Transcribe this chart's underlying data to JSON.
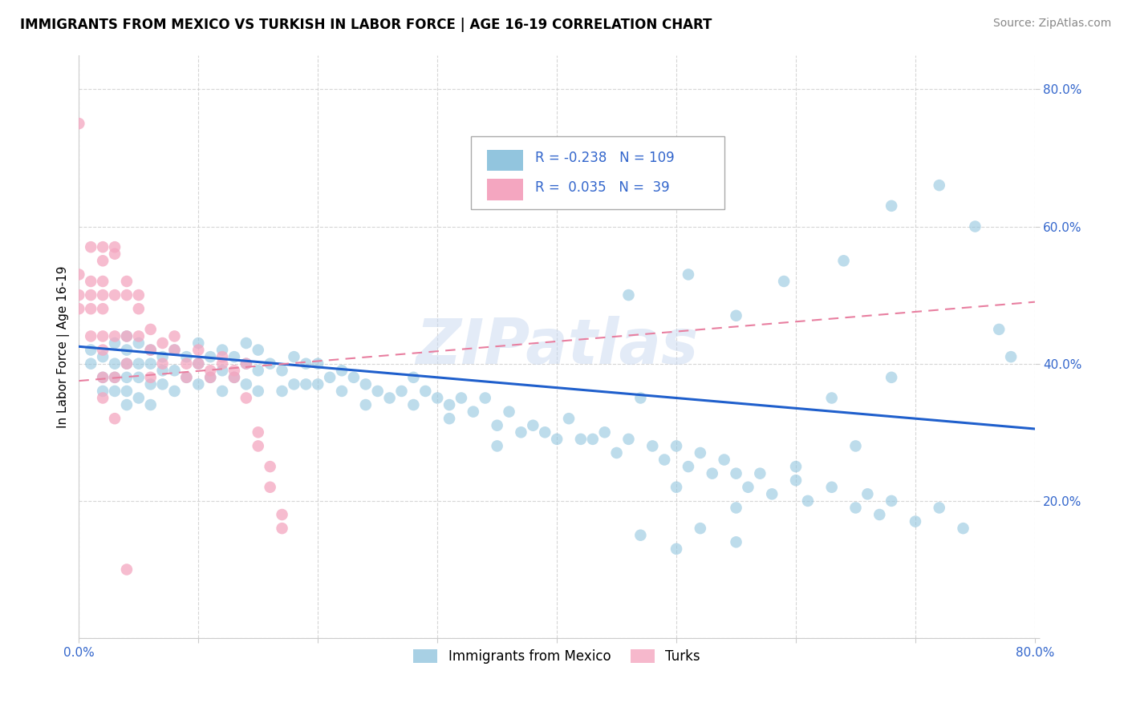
{
  "title": "IMMIGRANTS FROM MEXICO VS TURKISH IN LABOR FORCE | AGE 16-19 CORRELATION CHART",
  "source": "Source: ZipAtlas.com",
  "ylabel": "In Labor Force | Age 16-19",
  "xlim": [
    0.0,
    0.8
  ],
  "ylim": [
    0.0,
    0.85
  ],
  "mexico_color": "#92c5de",
  "turkey_color": "#f4a6c0",
  "mexico_R": -0.238,
  "mexico_N": 109,
  "turkey_R": 0.035,
  "turkey_N": 39,
  "legend_label_mexico": "Immigrants from Mexico",
  "legend_label_turkey": "Turks",
  "watermark": "ZIPatlas",
  "mexico_trendline_start_y": 0.425,
  "mexico_trendline_end_y": 0.305,
  "turkey_trendline_start_y": 0.375,
  "turkey_trendline_end_y": 0.49,
  "mexico_x": [
    0.01,
    0.01,
    0.02,
    0.02,
    0.02,
    0.03,
    0.03,
    0.03,
    0.03,
    0.04,
    0.04,
    0.04,
    0.04,
    0.04,
    0.04,
    0.05,
    0.05,
    0.05,
    0.05,
    0.06,
    0.06,
    0.06,
    0.06,
    0.07,
    0.07,
    0.07,
    0.08,
    0.08,
    0.08,
    0.09,
    0.09,
    0.1,
    0.1,
    0.1,
    0.11,
    0.11,
    0.12,
    0.12,
    0.12,
    0.13,
    0.13,
    0.14,
    0.14,
    0.14,
    0.15,
    0.15,
    0.15,
    0.16,
    0.17,
    0.17,
    0.18,
    0.18,
    0.19,
    0.19,
    0.2,
    0.2,
    0.21,
    0.22,
    0.22,
    0.23,
    0.24,
    0.24,
    0.25,
    0.26,
    0.27,
    0.28,
    0.28,
    0.29,
    0.3,
    0.31,
    0.31,
    0.32,
    0.33,
    0.34,
    0.35,
    0.35,
    0.36,
    0.37,
    0.38,
    0.39,
    0.4,
    0.41,
    0.42,
    0.43,
    0.44,
    0.45,
    0.46,
    0.47,
    0.48,
    0.49,
    0.5,
    0.51,
    0.52,
    0.53,
    0.54,
    0.55,
    0.56,
    0.57,
    0.58,
    0.6,
    0.61,
    0.63,
    0.65,
    0.66,
    0.67,
    0.68,
    0.7,
    0.72,
    0.74
  ],
  "mexico_y": [
    0.42,
    0.4,
    0.41,
    0.38,
    0.36,
    0.43,
    0.4,
    0.38,
    0.36,
    0.44,
    0.42,
    0.4,
    0.38,
    0.36,
    0.34,
    0.43,
    0.4,
    0.38,
    0.35,
    0.42,
    0.4,
    0.37,
    0.34,
    0.41,
    0.39,
    0.37,
    0.42,
    0.39,
    0.36,
    0.41,
    0.38,
    0.43,
    0.4,
    0.37,
    0.41,
    0.38,
    0.42,
    0.39,
    0.36,
    0.41,
    0.38,
    0.43,
    0.4,
    0.37,
    0.42,
    0.39,
    0.36,
    0.4,
    0.39,
    0.36,
    0.41,
    0.37,
    0.4,
    0.37,
    0.4,
    0.37,
    0.38,
    0.39,
    0.36,
    0.38,
    0.37,
    0.34,
    0.36,
    0.35,
    0.36,
    0.38,
    0.34,
    0.36,
    0.35,
    0.34,
    0.32,
    0.35,
    0.33,
    0.35,
    0.31,
    0.28,
    0.33,
    0.3,
    0.31,
    0.3,
    0.29,
    0.32,
    0.29,
    0.29,
    0.3,
    0.27,
    0.29,
    0.35,
    0.28,
    0.26,
    0.28,
    0.25,
    0.27,
    0.24,
    0.26,
    0.24,
    0.22,
    0.24,
    0.21,
    0.23,
    0.2,
    0.22,
    0.19,
    0.21,
    0.18,
    0.2,
    0.17,
    0.19,
    0.16
  ],
  "mexico_x_high": [
    0.46,
    0.51,
    0.55,
    0.59,
    0.64,
    0.68,
    0.72,
    0.75,
    0.78,
    0.52,
    0.55,
    0.47,
    0.5,
    0.63,
    0.68,
    0.77,
    0.5,
    0.55,
    0.6,
    0.65
  ],
  "mexico_y_high": [
    0.5,
    0.53,
    0.47,
    0.52,
    0.55,
    0.63,
    0.66,
    0.6,
    0.41,
    0.16,
    0.14,
    0.15,
    0.13,
    0.35,
    0.38,
    0.45,
    0.22,
    0.19,
    0.25,
    0.28
  ],
  "turkey_x": [
    0.0,
    0.0,
    0.0,
    0.0,
    0.01,
    0.01,
    0.01,
    0.01,
    0.01,
    0.02,
    0.02,
    0.02,
    0.02,
    0.02,
    0.02,
    0.02,
    0.03,
    0.03,
    0.03,
    0.04,
    0.04,
    0.04,
    0.05,
    0.05,
    0.06,
    0.06,
    0.07,
    0.08,
    0.09,
    0.1,
    0.11,
    0.12,
    0.13,
    0.14,
    0.15,
    0.16,
    0.17,
    0.03,
    0.02
  ],
  "turkey_y": [
    0.75,
    0.53,
    0.5,
    0.48,
    0.57,
    0.52,
    0.5,
    0.48,
    0.44,
    0.52,
    0.5,
    0.48,
    0.44,
    0.42,
    0.38,
    0.35,
    0.5,
    0.44,
    0.38,
    0.5,
    0.44,
    0.4,
    0.48,
    0.44,
    0.42,
    0.38,
    0.4,
    0.42,
    0.38,
    0.4,
    0.38,
    0.4,
    0.38,
    0.4,
    0.28,
    0.22,
    0.16,
    0.56,
    0.57
  ],
  "turkey_extra_x": [
    0.02,
    0.03,
    0.04,
    0.05,
    0.06,
    0.07,
    0.08,
    0.09,
    0.1,
    0.11,
    0.12,
    0.13,
    0.14,
    0.15,
    0.16,
    0.17,
    0.03,
    0.04
  ],
  "turkey_extra_y": [
    0.55,
    0.57,
    0.52,
    0.5,
    0.45,
    0.43,
    0.44,
    0.4,
    0.42,
    0.39,
    0.41,
    0.39,
    0.35,
    0.3,
    0.25,
    0.18,
    0.32,
    0.1
  ]
}
